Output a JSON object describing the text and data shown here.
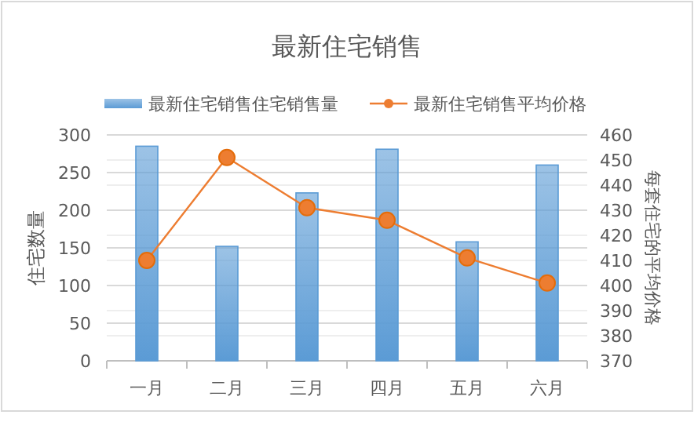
{
  "chart_data": {
    "type": "bar",
    "title": "最新住宅销售",
    "categories": [
      "一月",
      "二月",
      "三月",
      "四月",
      "五月",
      "六月"
    ],
    "series": [
      {
        "name": "最新住宅销售住宅销售量",
        "color": "#5b9bd5",
        "values": [
          285,
          152,
          223,
          281,
          158,
          260
        ]
      },
      {
        "name": "最新住宅销售平均价格",
        "type": "line",
        "axis": "y2",
        "color": "#ed7d31",
        "marker": "circle",
        "values": [
          410,
          451,
          431,
          426,
          411,
          401
        ]
      }
    ],
    "ylabel": "住宅数量",
    "y2label": "每套住宅的平均价格",
    "ylim": [
      0,
      300
    ],
    "yticks": [
      0,
      50,
      100,
      150,
      200,
      250,
      300
    ],
    "y2lim": [
      370,
      460
    ],
    "y2ticks": [
      370,
      380,
      390,
      400,
      410,
      420,
      430,
      440,
      450,
      460
    ],
    "grid": "y",
    "legend": "top"
  }
}
